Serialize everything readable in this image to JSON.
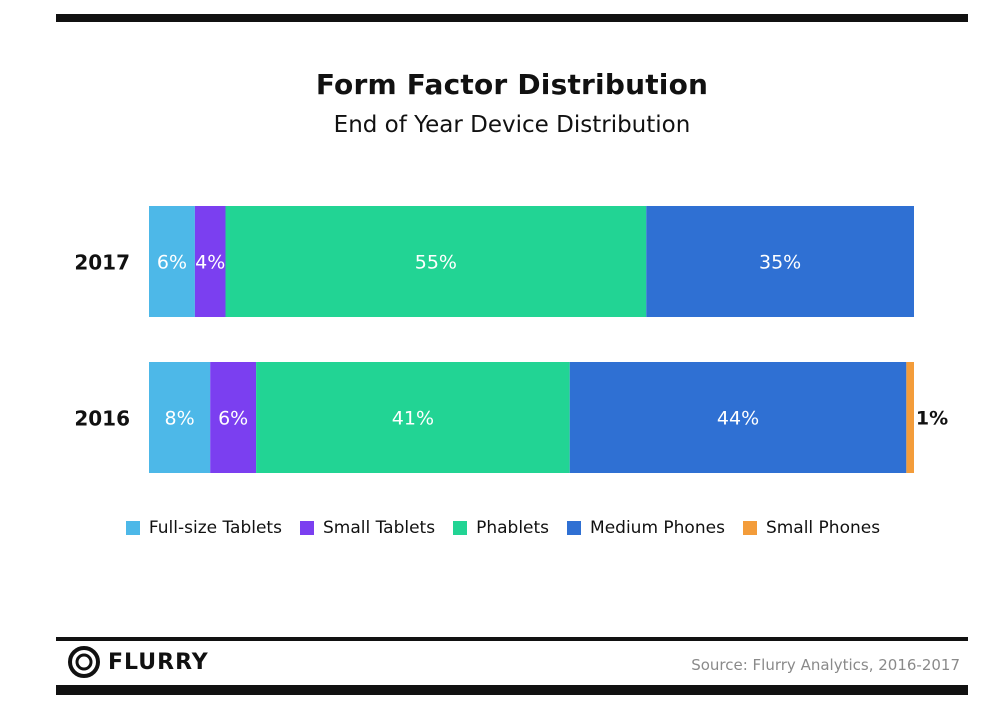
{
  "header": {
    "title": "Form Factor Distribution",
    "subtitle": "End of Year Device Distribution"
  },
  "chart_data": {
    "type": "bar",
    "orientation": "horizontal",
    "stacked": true,
    "title": "Form Factor Distribution",
    "subtitle": "End of Year Device Distribution",
    "categories": [
      "2017",
      "2016"
    ],
    "series": [
      {
        "name": "Full-size Tablets",
        "color": "#4db8e8",
        "values": [
          6,
          8
        ]
      },
      {
        "name": "Small Tablets",
        "color": "#7b3ff0",
        "values": [
          4,
          6
        ]
      },
      {
        "name": "Phablets",
        "color": "#22d494",
        "values": [
          55,
          41
        ]
      },
      {
        "name": "Medium Phones",
        "color": "#2f70d3",
        "values": [
          35,
          44
        ]
      },
      {
        "name": "Small Phones",
        "color": "#f39c3a",
        "values": [
          0,
          1
        ]
      }
    ],
    "data_labels": [
      [
        "6%",
        "4%",
        "55%",
        "35%",
        ""
      ],
      [
        "8%",
        "6%",
        "41%",
        "44%",
        "1%"
      ]
    ],
    "xlim": [
      0,
      100
    ],
    "grid": false,
    "legend_position": "bottom"
  },
  "footer": {
    "brand": "FLURRY",
    "source": "Source: Flurry Analytics, 2016-2017"
  },
  "icons": {
    "logo": "flurry-logo-icon"
  }
}
